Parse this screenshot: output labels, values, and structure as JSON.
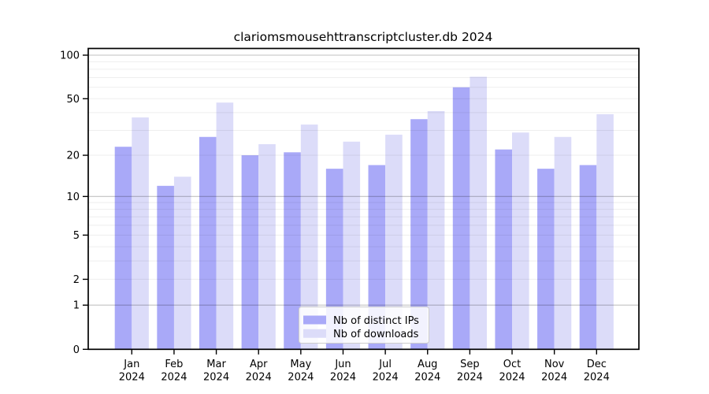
{
  "figure": {
    "title": "clariomsmousehttranscriptcluster.db 2024"
  },
  "chart_data": {
    "type": "bar",
    "title": "clariomsmousehttranscriptcluster.db 2024",
    "categories": [
      "Jan",
      "Feb",
      "Mar",
      "Apr",
      "May",
      "Jun",
      "Jul",
      "Aug",
      "Sep",
      "Oct",
      "Nov",
      "Dec"
    ],
    "category_year": "2024",
    "series": [
      {
        "name": "Nb of distinct IPs",
        "color": "#a9a9f8",
        "values": [
          23,
          12,
          27,
          20,
          21,
          16,
          17,
          36,
          60,
          22,
          16,
          17
        ]
      },
      {
        "name": "Nb of downloads",
        "color": "#dcdcf9",
        "values": [
          37,
          14,
          47,
          24,
          33,
          25,
          28,
          41,
          71,
          29,
          27,
          39
        ]
      }
    ],
    "xlabel": "",
    "ylabel": "",
    "y_scale": "log10(x+1)",
    "y_tick_labels": [
      "100",
      "50",
      "20",
      "10",
      "5",
      "2",
      "1",
      "0"
    ],
    "y_tick_values": [
      100,
      50,
      20,
      10,
      5,
      2,
      1,
      0
    ],
    "major_gridline_values": [
      100,
      10,
      1
    ],
    "minor_gridline_values": [
      90,
      80,
      70,
      60,
      50,
      40,
      30,
      20,
      9,
      8,
      7,
      6,
      5,
      4,
      3,
      2
    ],
    "ylim": [
      0,
      111
    ],
    "grid": "on",
    "legend": {
      "position": "lower-center-inside",
      "entries": [
        "Nb of distinct IPs",
        "Nb of downloads"
      ]
    },
    "colors": {
      "bar_distinct_ips": "#a9a9f8",
      "bar_downloads": "#dcdcf9",
      "axis": "#000000",
      "text": "#000000",
      "major_grid": "#c3c3c3",
      "minor_grid": "#efefef",
      "legend_border": "#cccccc",
      "legend_background": "#ffffff"
    }
  }
}
